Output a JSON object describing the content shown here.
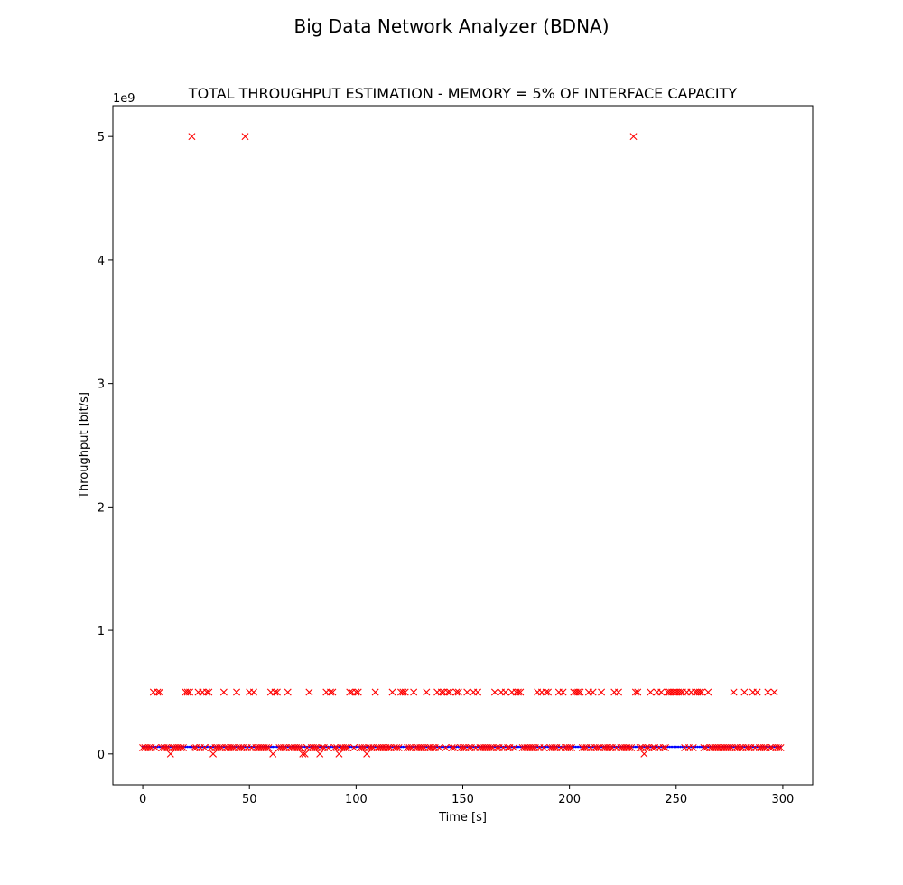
{
  "figure": {
    "suptitle": "Big Data Network Analyzer (BDNA)"
  },
  "chart_data": {
    "type": "scatter",
    "title": "TOTAL THROUGHPUT ESTIMATION - MEMORY = 5% OF INTERFACE CAPACITY",
    "xlabel": "Time [s]",
    "ylabel": "Throughput [bit/s]",
    "y_offset_label": "1e9",
    "xlim": [
      -14,
      314
    ],
    "ylim": [
      -250000000,
      5250000000
    ],
    "xticks": [
      0,
      50,
      100,
      150,
      200,
      250,
      300
    ],
    "xtick_labels": [
      "0",
      "50",
      "100",
      "150",
      "200",
      "250",
      "300"
    ],
    "yticks": [
      0,
      1000000000,
      2000000000,
      3000000000,
      4000000000,
      5000000000
    ],
    "ytick_labels": [
      "0",
      "1",
      "2",
      "3",
      "4",
      "5"
    ],
    "grid": false,
    "legend": "none",
    "series": [
      {
        "marker": "dot",
        "color": "#0000ff",
        "baseline": {
          "x_start": 0,
          "x_end": 299,
          "x_step": 1,
          "y": 57000000
        },
        "points": []
      },
      {
        "marker": "x",
        "color": "#ff0000",
        "baseline": {
          "x_start": 0,
          "x_end": 299,
          "x_step": 1,
          "y": 50000000,
          "exclude_x": [
            5,
            7,
            8,
            13,
            20,
            21,
            22,
            23,
            26,
            28,
            30,
            31,
            33,
            38,
            44,
            48,
            50,
            52,
            60,
            61,
            62,
            63,
            68,
            75,
            76,
            78,
            83,
            86,
            88,
            89,
            92,
            97,
            98,
            100,
            101,
            105,
            109,
            117,
            121,
            122,
            123,
            127,
            133,
            138,
            140,
            141,
            143,
            144,
            147,
            148,
            152,
            155,
            157,
            165,
            168,
            170,
            173,
            175,
            176,
            177,
            185,
            187,
            189,
            190,
            195,
            197,
            202,
            203,
            204,
            205,
            209,
            211,
            215,
            221,
            223,
            230,
            231,
            232,
            235,
            238,
            241,
            243,
            246,
            247,
            248,
            249,
            250,
            251,
            252,
            253,
            255,
            257,
            259,
            260,
            261,
            262,
            265,
            277,
            282,
            286,
            288,
            293,
            296
          ]
        },
        "points": [
          [
            23,
            5000000000
          ],
          [
            48,
            5000000000
          ],
          [
            230,
            5000000000
          ],
          [
            5,
            500000000
          ],
          [
            7,
            500000000
          ],
          [
            8,
            500000000
          ],
          [
            20,
            500000000
          ],
          [
            21,
            500000000
          ],
          [
            22,
            500000000
          ],
          [
            26,
            500000000
          ],
          [
            28,
            500000000
          ],
          [
            30,
            500000000
          ],
          [
            31,
            500000000
          ],
          [
            38,
            500000000
          ],
          [
            44,
            500000000
          ],
          [
            50,
            500000000
          ],
          [
            52,
            500000000
          ],
          [
            60,
            500000000
          ],
          [
            62,
            500000000
          ],
          [
            63,
            500000000
          ],
          [
            68,
            500000000
          ],
          [
            78,
            500000000
          ],
          [
            86,
            500000000
          ],
          [
            88,
            500000000
          ],
          [
            89,
            500000000
          ],
          [
            97,
            500000000
          ],
          [
            98,
            500000000
          ],
          [
            100,
            500000000
          ],
          [
            101,
            500000000
          ],
          [
            109,
            500000000
          ],
          [
            117,
            500000000
          ],
          [
            121,
            500000000
          ],
          [
            122,
            500000000
          ],
          [
            123,
            500000000
          ],
          [
            127,
            500000000
          ],
          [
            133,
            500000000
          ],
          [
            138,
            500000000
          ],
          [
            140,
            500000000
          ],
          [
            141,
            500000000
          ],
          [
            143,
            500000000
          ],
          [
            144,
            500000000
          ],
          [
            147,
            500000000
          ],
          [
            148,
            500000000
          ],
          [
            152,
            500000000
          ],
          [
            155,
            500000000
          ],
          [
            157,
            500000000
          ],
          [
            165,
            500000000
          ],
          [
            168,
            500000000
          ],
          [
            170,
            500000000
          ],
          [
            173,
            500000000
          ],
          [
            175,
            500000000
          ],
          [
            176,
            500000000
          ],
          [
            177,
            500000000
          ],
          [
            185,
            500000000
          ],
          [
            187,
            500000000
          ],
          [
            189,
            500000000
          ],
          [
            190,
            500000000
          ],
          [
            195,
            500000000
          ],
          [
            197,
            500000000
          ],
          [
            202,
            500000000
          ],
          [
            203,
            500000000
          ],
          [
            204,
            500000000
          ],
          [
            205,
            500000000
          ],
          [
            209,
            500000000
          ],
          [
            211,
            500000000
          ],
          [
            215,
            500000000
          ],
          [
            221,
            500000000
          ],
          [
            223,
            500000000
          ],
          [
            231,
            500000000
          ],
          [
            232,
            500000000
          ],
          [
            238,
            500000000
          ],
          [
            241,
            500000000
          ],
          [
            243,
            500000000
          ],
          [
            246,
            500000000
          ],
          [
            247,
            500000000
          ],
          [
            248,
            500000000
          ],
          [
            249,
            500000000
          ],
          [
            250,
            500000000
          ],
          [
            251,
            500000000
          ],
          [
            252,
            500000000
          ],
          [
            253,
            500000000
          ],
          [
            255,
            500000000
          ],
          [
            257,
            500000000
          ],
          [
            259,
            500000000
          ],
          [
            260,
            500000000
          ],
          [
            261,
            500000000
          ],
          [
            262,
            500000000
          ],
          [
            265,
            500000000
          ],
          [
            277,
            500000000
          ],
          [
            282,
            500000000
          ],
          [
            286,
            500000000
          ],
          [
            288,
            500000000
          ],
          [
            293,
            500000000
          ],
          [
            296,
            500000000
          ],
          [
            13,
            0
          ],
          [
            33,
            0
          ],
          [
            61,
            0
          ],
          [
            75,
            0
          ],
          [
            76,
            0
          ],
          [
            83,
            0
          ],
          [
            92,
            0
          ],
          [
            105,
            0
          ],
          [
            235,
            0
          ]
        ]
      }
    ]
  }
}
